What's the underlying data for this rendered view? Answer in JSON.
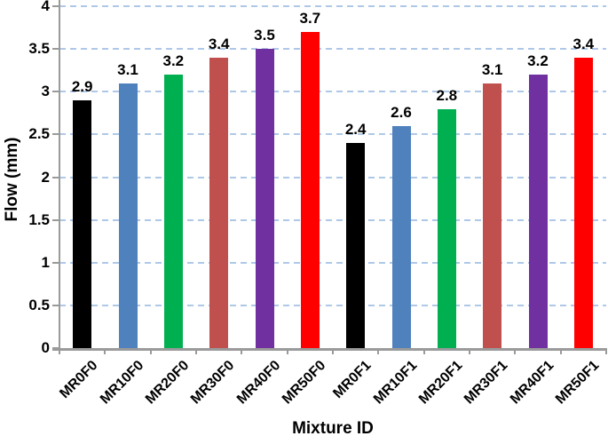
{
  "chart_data": {
    "type": "bar",
    "title": "",
    "xlabel": "Mixture ID",
    "ylabel": "Flow (mm)",
    "categories": [
      "MR0F0",
      "MR10F0",
      "MR20F0",
      "MR30F0",
      "MR40F0",
      "MR50F0",
      "MR0F1",
      "MR10F1",
      "MR20F1",
      "MR30F1",
      "MR40F1",
      "MR50F1"
    ],
    "values": [
      2.9,
      3.1,
      3.2,
      3.4,
      3.5,
      3.7,
      2.4,
      2.6,
      2.8,
      3.1,
      3.2,
      3.4
    ],
    "data_labels": [
      "2.9",
      "3.1",
      "3.2",
      "3.4",
      "3.5",
      "3.7",
      "2.4",
      "2.6",
      "2.8",
      "3.1",
      "3.2",
      "3.4"
    ],
    "bar_colors": [
      "#000000",
      "#4F81BD",
      "#00B050",
      "#C0504D",
      "#7030A0",
      "#FF0000",
      "#000000",
      "#4F81BD",
      "#00B050",
      "#C0504D",
      "#7030A0",
      "#FF0000"
    ],
    "ylim": [
      0,
      4
    ],
    "ytick_step": 0.5,
    "ytick_labels": [
      "0",
      "0.5",
      "1",
      "1.5",
      "2",
      "2.5",
      "3",
      "3.5",
      "4"
    ],
    "grid": "horizontal-dashed",
    "gridline_color": "#AEC8E8",
    "axis_color": "#9a9a9a",
    "legend": "none"
  }
}
